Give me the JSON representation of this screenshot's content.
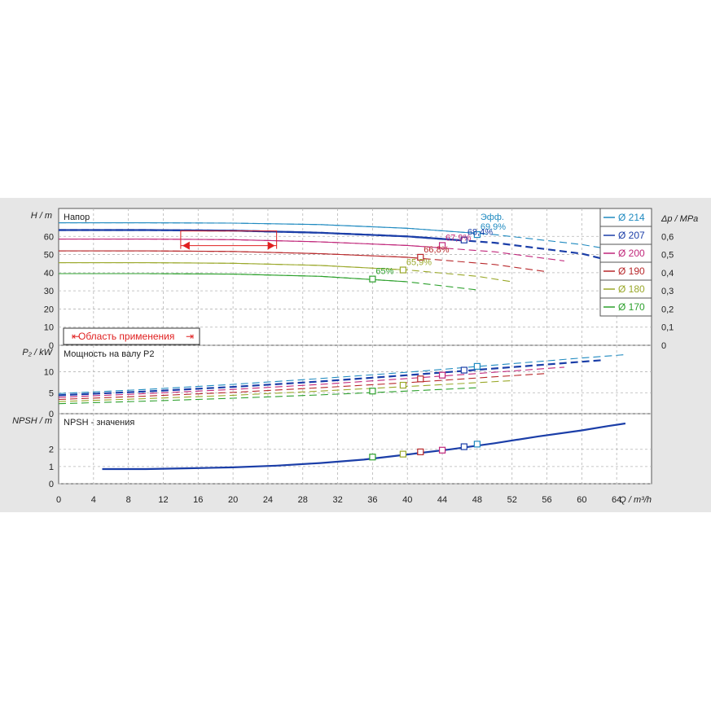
{
  "chart_data": [
    {
      "type": "line",
      "panel": "head",
      "title": "Напор",
      "ylabel": "H / m",
      "y2label": "Δp / MPa",
      "ylim": [
        0,
        70
      ],
      "y_ticks": [
        0,
        10,
        20,
        30,
        40,
        50,
        60
      ],
      "y2_ticks": [
        "0",
        "0,1",
        "0,2",
        "0,3",
        "0,4",
        "0,5",
        "0,6"
      ],
      "xlim": [
        0,
        68
      ],
      "grid": true,
      "legend_position": "right",
      "range_label": "Область применения",
      "range_x": [
        14,
        25
      ],
      "range_y": 63,
      "efficiency_prefix": "Эфф.",
      "series": [
        {
          "name": "Ø 214",
          "color": "#1f8ac0",
          "x": [
            0,
            10,
            20,
            30,
            40,
            50,
            60,
            65
          ],
          "y": [
            67.5,
            67.5,
            67.3,
            66.5,
            64.5,
            61,
            55.5,
            51.5
          ],
          "bep": {
            "x": 48,
            "y": 61,
            "label": "69,9%"
          }
        },
        {
          "name": "Ø 207",
          "color": "#1b3ea8",
          "x": [
            0,
            10,
            20,
            30,
            40,
            50,
            60,
            62.5
          ],
          "y": [
            63.5,
            63.5,
            63.2,
            62,
            60,
            56.5,
            50.5,
            47.5
          ],
          "bep": {
            "x": 46.5,
            "y": 58,
            "label": "68,4%"
          }
        },
        {
          "name": "Ø 200",
          "color": "#c0267a",
          "x": [
            0,
            10,
            20,
            30,
            40,
            50,
            58
          ],
          "y": [
            58.5,
            58.5,
            58.2,
            57,
            55,
            51.5,
            46.5
          ],
          "bep": {
            "x": 44,
            "y": 55,
            "label": "67,9%"
          }
        },
        {
          "name": "Ø 190",
          "color": "#b8282b",
          "x": [
            0,
            10,
            20,
            30,
            40,
            50,
            56
          ],
          "y": [
            52,
            52,
            51.7,
            50.5,
            48.5,
            44.5,
            40.5
          ],
          "bep": {
            "x": 41.5,
            "y": 48.5,
            "label": "66,8%"
          }
        },
        {
          "name": "Ø 180",
          "color": "#9aa82a",
          "x": [
            0,
            10,
            20,
            30,
            40,
            48,
            52
          ],
          "y": [
            45.5,
            45.5,
            45.2,
            44,
            41.5,
            38,
            35
          ],
          "bep": {
            "x": 39.5,
            "y": 41.5,
            "label": "65,9%"
          }
        },
        {
          "name": "Ø 170",
          "color": "#2ca02c",
          "x": [
            0,
            10,
            20,
            30,
            40,
            48
          ],
          "y": [
            39.5,
            39.5,
            39.2,
            38,
            35,
            30.5
          ],
          "bep": {
            "x": 36,
            "y": 36.5,
            "label": "65%"
          }
        }
      ]
    },
    {
      "type": "line",
      "panel": "power",
      "title": "Мощность на валу P2",
      "ylabel": "P₂ / kW",
      "ylim": [
        0,
        14
      ],
      "y_ticks": [
        0,
        5,
        10
      ],
      "xlim": [
        0,
        68
      ],
      "grid": true,
      "series": [
        {
          "name": "Ø 214",
          "color": "#1f8ac0",
          "x": [
            0,
            10,
            20,
            30,
            40,
            50,
            60,
            65
          ],
          "y": [
            4.8,
            5.8,
            7.0,
            8.4,
            9.9,
            11.6,
            13.3,
            14.1
          ],
          "marker": {
            "x": 48,
            "y": 11.3
          }
        },
        {
          "name": "Ø 207",
          "color": "#1b3ea8",
          "x": [
            0,
            10,
            20,
            30,
            40,
            50,
            60,
            62.5
          ],
          "y": [
            4.4,
            5.3,
            6.4,
            7.7,
            9.2,
            10.8,
            12.4,
            12.8
          ],
          "marker": {
            "x": 46.5,
            "y": 10.4
          }
        },
        {
          "name": "Ø 200",
          "color": "#c0267a",
          "x": [
            0,
            10,
            20,
            30,
            40,
            50,
            58
          ],
          "y": [
            3.9,
            4.8,
            5.8,
            7.0,
            8.4,
            9.9,
            11.1
          ],
          "marker": {
            "x": 44,
            "y": 9.2
          }
        },
        {
          "name": "Ø 190",
          "color": "#b8282b",
          "x": [
            0,
            10,
            20,
            30,
            40,
            50,
            56
          ],
          "y": [
            3.4,
            4.2,
            5.1,
            6.2,
            7.4,
            8.8,
            9.6
          ],
          "marker": {
            "x": 41.5,
            "y": 8.3
          }
        },
        {
          "name": "Ø 180",
          "color": "#9aa82a",
          "x": [
            0,
            10,
            20,
            30,
            40,
            48,
            52
          ],
          "y": [
            2.9,
            3.6,
            4.4,
            5.4,
            6.5,
            7.4,
            7.9
          ],
          "marker": {
            "x": 39.5,
            "y": 6.8
          }
        },
        {
          "name": "Ø 170",
          "color": "#2ca02c",
          "x": [
            0,
            10,
            20,
            30,
            40,
            48
          ],
          "y": [
            2.4,
            3.0,
            3.7,
            4.5,
            5.4,
            6.2
          ],
          "marker": {
            "x": 36,
            "y": 5.4
          }
        }
      ]
    },
    {
      "type": "line",
      "panel": "npsh",
      "title": "NPSH - значения",
      "ylabel": "NPSH / m",
      "xlabel": "Q / m³/h",
      "ylim": [
        0,
        3.5
      ],
      "y_ticks": [
        0,
        1,
        2
      ],
      "xlim": [
        0,
        68
      ],
      "x_ticks": [
        0,
        4,
        8,
        12,
        16,
        20,
        24,
        28,
        32,
        36,
        40,
        44,
        48,
        52,
        56,
        60,
        64
      ],
      "grid": true,
      "series": [
        {
          "name": "NPSH",
          "color": "#1b3ea8",
          "x": [
            5,
            10,
            15,
            20,
            25,
            30,
            35,
            40,
            45,
            50,
            55,
            60,
            63,
            65
          ],
          "y": [
            0.85,
            0.85,
            0.9,
            0.95,
            1.05,
            1.2,
            1.4,
            1.7,
            2.0,
            2.35,
            2.75,
            3.1,
            3.35,
            3.5
          ],
          "markers": [
            {
              "x": 36,
              "y": 1.55,
              "color": "#2ca02c"
            },
            {
              "x": 39.5,
              "y": 1.72,
              "color": "#9aa82a"
            },
            {
              "x": 41.5,
              "y": 1.85,
              "color": "#b8282b"
            },
            {
              "x": 44,
              "y": 1.95,
              "color": "#c0267a"
            },
            {
              "x": 46.5,
              "y": 2.15,
              "color": "#1b3ea8"
            },
            {
              "x": 48,
              "y": 2.3,
              "color": "#1f8ac0"
            }
          ]
        }
      ]
    }
  ]
}
